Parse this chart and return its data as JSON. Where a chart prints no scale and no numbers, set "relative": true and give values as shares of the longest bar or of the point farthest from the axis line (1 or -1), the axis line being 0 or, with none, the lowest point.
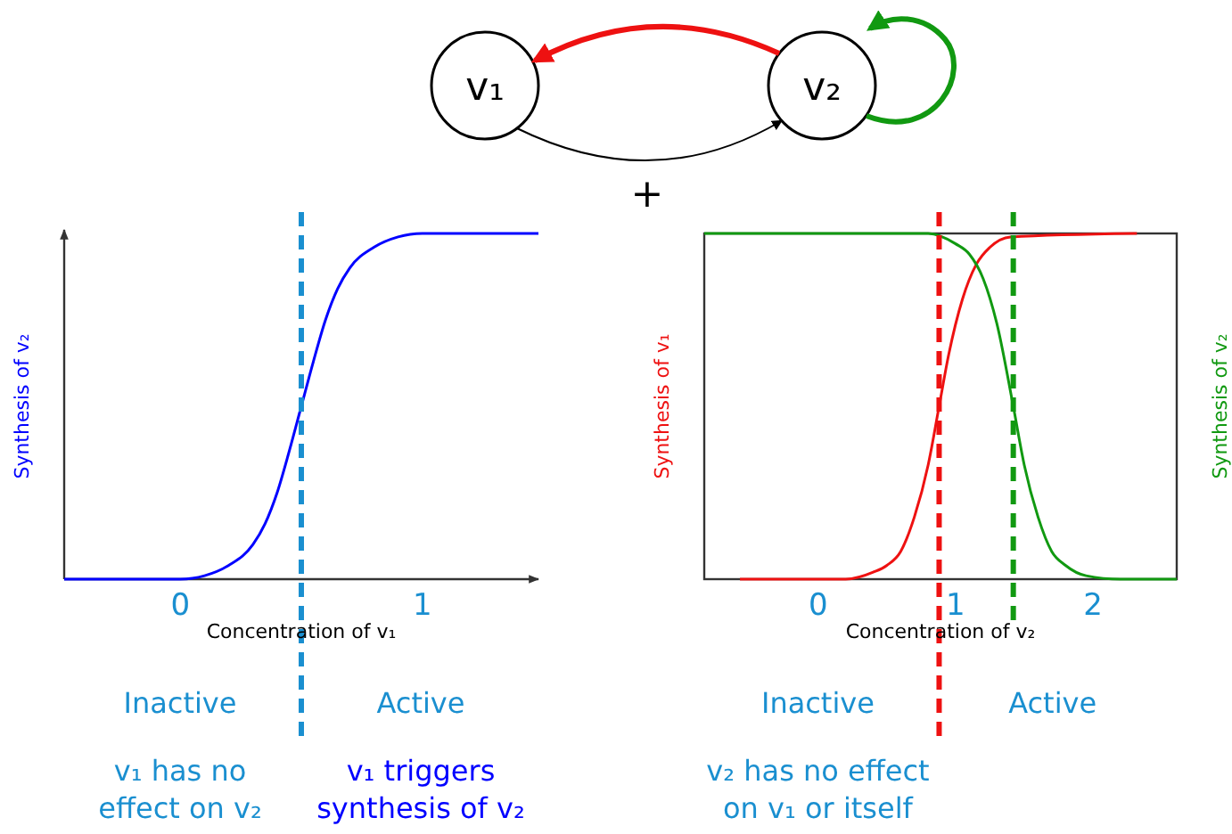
{
  "chart_data": [
    {
      "type": "other",
      "annotations": [
        "v₁",
        "v₂",
        "+"
      ]
    },
    {
      "type": "line",
      "relative": true,
      "xlabel": "Concentration of v₁",
      "ylabel": "Synthesis of v₂",
      "xlim": [
        -0.48,
        1.48
      ],
      "xticks": [
        0,
        1
      ],
      "series": [
        {
          "color": "#0000ff",
          "x": [
            -0.48,
            0,
            0.1,
            0.2,
            0.3,
            0.35,
            0.4,
            0.45,
            0.5,
            0.55,
            0.6,
            0.65,
            0.7,
            0.8,
            0.9,
            1,
            1.48
          ],
          "values": [
            0,
            0,
            0.01,
            0.04,
            0.1,
            0.16,
            0.25,
            0.37,
            0.5,
            0.63,
            0.75,
            0.84,
            0.9,
            0.96,
            0.99,
            1,
            1
          ]
        }
      ],
      "ref_lines": [
        {
          "axis": "x",
          "value": 0.5,
          "color": "#1a8fd0",
          "line_style": "dashed"
        }
      ],
      "annotations": [
        "Inactive",
        "Active",
        "v₁ has no\neffect on v₂",
        "v₁ triggers\nsynthesis of v₂"
      ]
    },
    {
      "type": "line",
      "relative": true,
      "xlabel": "Concentration of v₂",
      "ylabel": "Synthesis of v₁",
      "y2label": "Synthesis of v₂",
      "xlim": [
        -0.83,
        2.61
      ],
      "xticks": [
        0,
        1,
        2
      ],
      "series": [
        {
          "color": "#ee1111",
          "x": [
            -0.57,
            0.2,
            0.4,
            0.5,
            0.6,
            0.7,
            0.8,
            0.88,
            0.95,
            1.05,
            1.15,
            1.25,
            1.4,
            2.32
          ],
          "values": [
            0,
            0,
            0.02,
            0.04,
            0.08,
            0.18,
            0.33,
            0.5,
            0.65,
            0.81,
            0.91,
            0.96,
            0.99,
            1
          ]
        },
        {
          "color": "#119911",
          "x": [
            -0.83,
            0.8,
            1,
            1.1,
            1.2,
            1.3,
            1.42,
            1.5,
            1.6,
            1.7,
            1.8,
            1.95,
            2.2,
            2.61
          ],
          "values": [
            1,
            1,
            0.97,
            0.94,
            0.87,
            0.74,
            0.5,
            0.33,
            0.18,
            0.08,
            0.04,
            0.01,
            0,
            0
          ]
        }
      ],
      "ref_lines": [
        {
          "axis": "x",
          "value": 0.88,
          "color": "#ee1111",
          "line_style": "dashed"
        },
        {
          "axis": "x",
          "value": 1.42,
          "color": "#119911",
          "line_style": "dashed"
        }
      ],
      "annotations": [
        "Inactive",
        "Active",
        "v₂ has no effect\non v₁ or itself"
      ]
    }
  ]
}
